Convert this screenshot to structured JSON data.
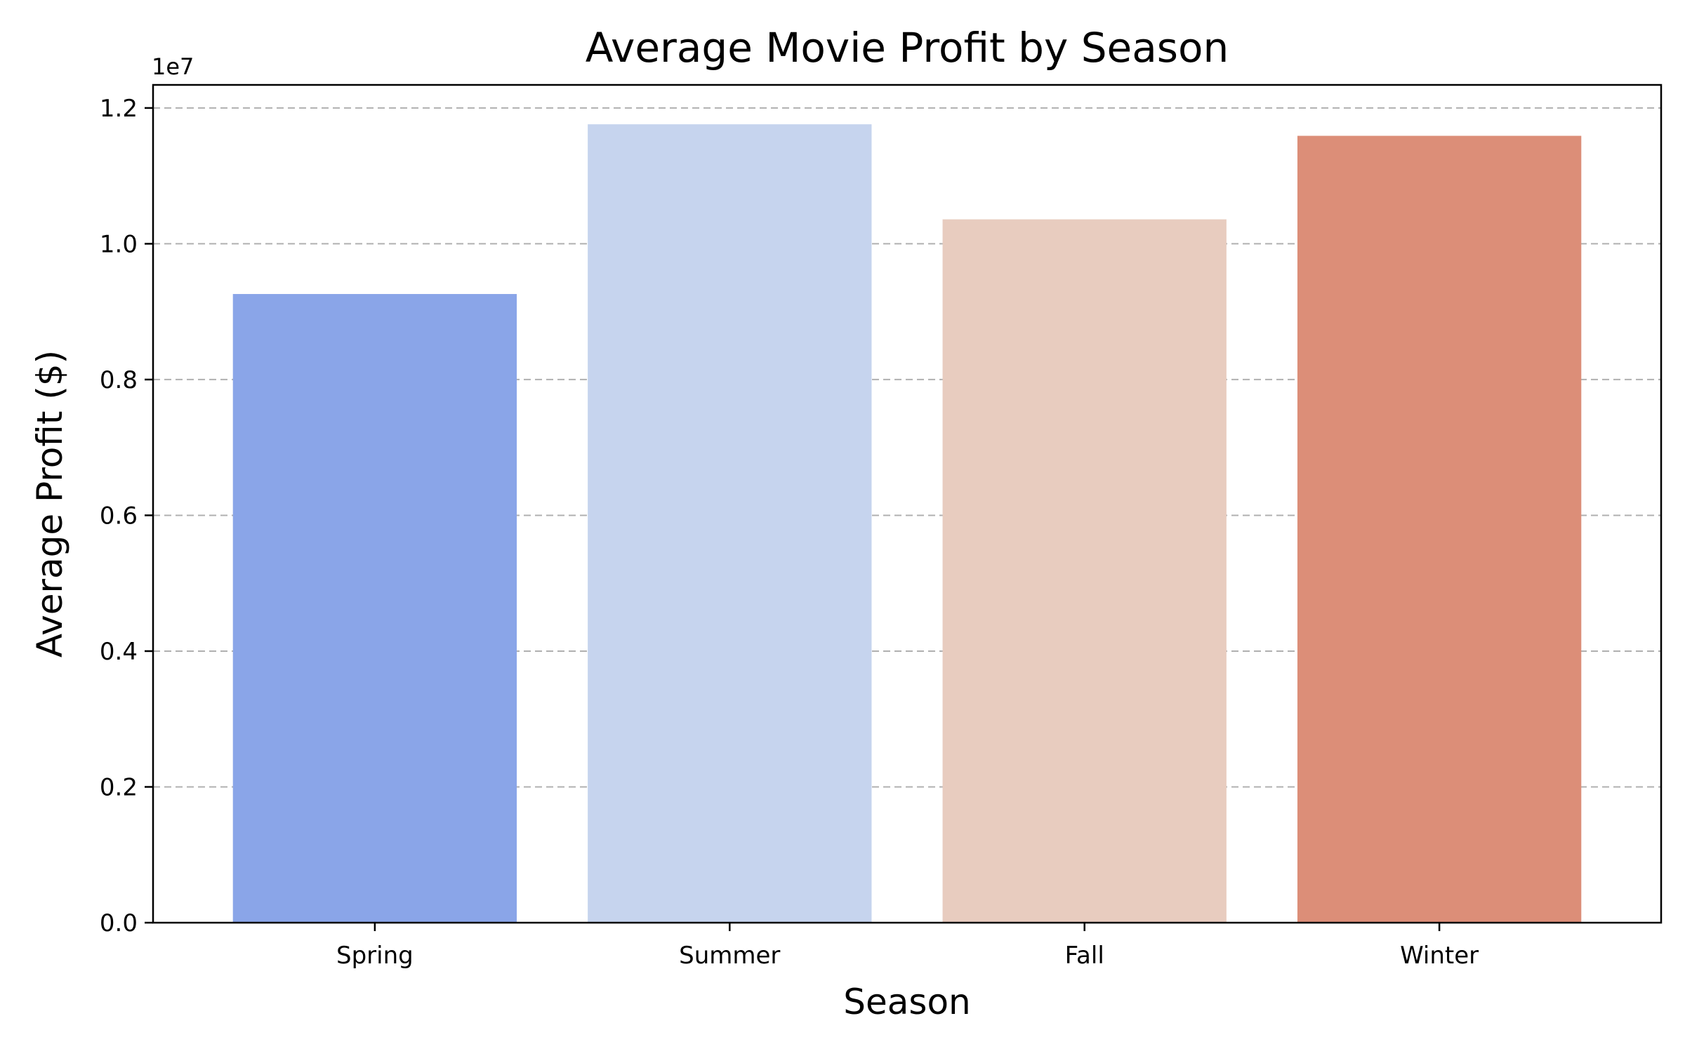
{
  "chart_data": {
    "type": "bar",
    "title": "Average Movie Profit by Season",
    "xlabel": "Season",
    "ylabel": "Average Profit ($)",
    "y_offset_label": "1e7",
    "categories": [
      "Spring",
      "Summer",
      "Fall",
      "Winter"
    ],
    "values": [
      9260000,
      11760000,
      10360000,
      11590000
    ],
    "colors": [
      "#8aa5e8",
      "#c6d4ee",
      "#e8ccbf",
      "#dc8e78"
    ],
    "ylim": [
      0,
      12340000
    ],
    "yticks": [
      {
        "value": 0,
        "label": "0.0"
      },
      {
        "value": 2000000,
        "label": "0.2"
      },
      {
        "value": 4000000,
        "label": "0.4"
      },
      {
        "value": 6000000,
        "label": "0.6"
      },
      {
        "value": 8000000,
        "label": "0.8"
      },
      {
        "value": 10000000,
        "label": "1.0"
      },
      {
        "value": 12000000,
        "label": "1.2"
      }
    ],
    "grid": "y, dashed",
    "legend": "none"
  }
}
